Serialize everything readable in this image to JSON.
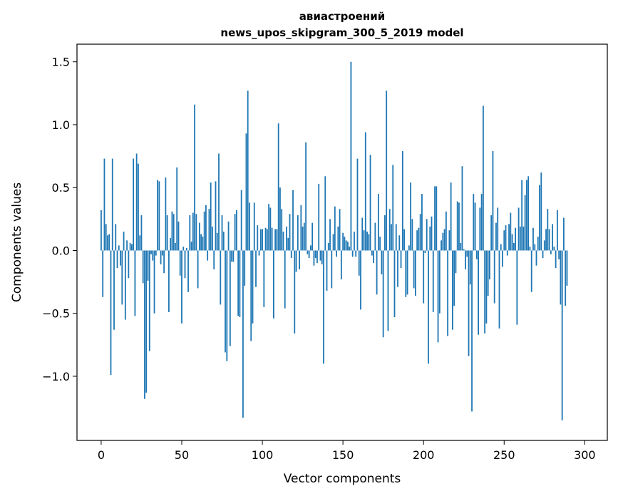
{
  "chart_data": {
    "type": "bar",
    "title_line1": "авиастроений",
    "title_line2": "news_upos_skipgram_300_5_2019 model",
    "xlabel": "Vector components",
    "ylabel": "Components values",
    "xlim": [
      -15,
      314
    ],
    "ylim": [
      -1.51,
      1.64
    ],
    "xticks": [
      0,
      50,
      100,
      150,
      200,
      250,
      300
    ],
    "yticks": [
      -1.0,
      -0.5,
      0.0,
      0.5,
      1.0,
      1.5
    ],
    "ytick_labels": [
      "−1.0",
      "−0.5",
      "0.0",
      "0.5",
      "1.0",
      "1.5"
    ],
    "grid": false,
    "bar_color": "#1f77b4",
    "values": [
      0.32,
      -0.37,
      0.73,
      0.21,
      0.12,
      0.13,
      -0.99,
      0.73,
      -0.63,
      0.21,
      -0.14,
      0.04,
      -0.12,
      -0.43,
      0.15,
      -0.55,
      0.08,
      -0.22,
      0.06,
      0.05,
      0.73,
      -0.52,
      0.77,
      0.69,
      0.12,
      0.28,
      -0.26,
      -1.18,
      -1.13,
      -0.24,
      -0.8,
      -0.03,
      -0.08,
      -0.5,
      -0.04,
      0.56,
      0.55,
      -0.11,
      -0.04,
      -0.18,
      0.58,
      0.28,
      -0.49,
      0.1,
      0.31,
      0.29,
      0.06,
      0.66,
      0.23,
      -0.2,
      -0.58,
      0.03,
      -0.22,
      0.02,
      -0.33,
      0.28,
      0.07,
      0.3,
      1.16,
      0.29,
      -0.3,
      0.22,
      0.13,
      0.11,
      0.31,
      0.36,
      -0.08,
      0.33,
      0.54,
      0.19,
      -0.15,
      0.55,
      0.14,
      0.77,
      -0.43,
      0.28,
      0.15,
      -0.81,
      -0.88,
      0.23,
      -0.76,
      -0.09,
      -0.09,
      0.29,
      0.32,
      -0.52,
      -0.53,
      0.48,
      -1.33,
      -0.28,
      0.93,
      1.27,
      0.38,
      -0.72,
      -0.58,
      0.38,
      -0.29,
      0.2,
      -0.04,
      0.17,
      0.17,
      -0.45,
      0.18,
      0.17,
      0.37,
      0.34,
      0.18,
      -0.54,
      0.17,
      0.17,
      1.01,
      0.5,
      0.33,
      0.15,
      -0.46,
      0.19,
      0.1,
      0.29,
      -0.06,
      0.48,
      -0.66,
      -0.17,
      0.28,
      -0.15,
      0.36,
      0.19,
      0.22,
      0.86,
      -0.03,
      -0.06,
      0.04,
      0.22,
      -0.12,
      -0.06,
      -0.1,
      0.53,
      -0.08,
      -0.11,
      -0.9,
      0.59,
      -0.32,
      0.06,
      0.25,
      -0.3,
      0.13,
      0.35,
      -0.05,
      0.19,
      0.33,
      -0.23,
      0.14,
      0.11,
      0.08,
      0.07,
      0.03,
      1.5,
      -0.05,
      0.15,
      -0.05,
      0.73,
      -0.2,
      -0.47,
      0.26,
      0.16,
      0.94,
      0.15,
      0.13,
      0.76,
      -0.04,
      -0.1,
      0.22,
      -0.35,
      0.45,
      0.11,
      -0.19,
      -0.69,
      0.28,
      1.27,
      -0.64,
      0.33,
      0.21,
      0.68,
      -0.53,
      0.21,
      -0.29,
      0.12,
      -0.14,
      0.79,
      0.17,
      -0.37,
      -0.35,
      0.04,
      0.54,
      0.25,
      -0.3,
      -0.36,
      0.16,
      0.18,
      0.29,
      0.45,
      -0.42,
      -0.02,
      0.25,
      -0.9,
      0.19,
      0.27,
      -0.49,
      0.51,
      0.51,
      -0.73,
      -0.5,
      0.08,
      0.14,
      0.17,
      0.31,
      -0.68,
      0.16,
      0.54,
      -0.63,
      -0.44,
      -0.18,
      0.39,
      0.38,
      0.06,
      0.67,
      0.01,
      -0.15,
      -0.05,
      -0.84,
      -0.27,
      -1.28,
      0.45,
      0.38,
      -0.07,
      -0.67,
      0.34,
      0.45,
      1.15,
      -0.66,
      -0.58,
      -0.36,
      -0.23,
      0.28,
      0.79,
      -0.42,
      0.22,
      0.34,
      -0.62,
      0.05,
      -0.13,
      0.16,
      0.2,
      -0.04,
      0.21,
      0.3,
      0.13,
      0.06,
      0.18,
      -0.59,
      0.34,
      0.19,
      0.56,
      0.19,
      0.44,
      0.56,
      0.59,
      0.03,
      -0.33,
      0.18,
      0.05,
      -0.12,
      0.11,
      0.52,
      0.62,
      -0.06,
      0.08,
      0.17,
      0.33,
      0.17,
      -0.03,
      0.21,
      0.03,
      -0.14,
      0.32,
      -0.07,
      -0.43,
      -1.35,
      0.26,
      -0.44,
      -0.28
    ]
  }
}
